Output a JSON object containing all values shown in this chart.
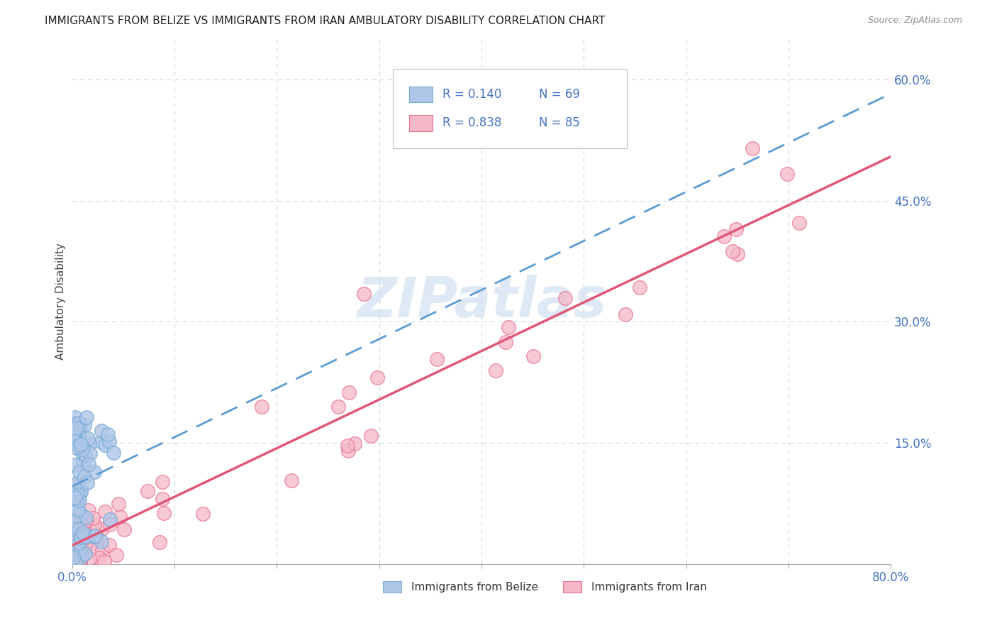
{
  "title": "IMMIGRANTS FROM BELIZE VS IMMIGRANTS FROM IRAN AMBULATORY DISABILITY CORRELATION CHART",
  "source": "Source: ZipAtlas.com",
  "ylabel": "Ambulatory Disability",
  "xlim": [
    0.0,
    0.8
  ],
  "ylim": [
    0.0,
    0.65
  ],
  "xticks": [
    0.0,
    0.1,
    0.2,
    0.3,
    0.4,
    0.5,
    0.6,
    0.7,
    0.8
  ],
  "xticklabels": [
    "0.0%",
    "",
    "",
    "",
    "",
    "",
    "",
    "",
    "80.0%"
  ],
  "ytick_positions": [
    0.15,
    0.3,
    0.45,
    0.6
  ],
  "ytick_labels": [
    "15.0%",
    "30.0%",
    "45.0%",
    "60.0%"
  ],
  "belize_R": 0.14,
  "belize_N": 69,
  "iran_R": 0.838,
  "iran_N": 85,
  "belize_color": "#aec6e8",
  "belize_edge_color": "#7badd4",
  "belize_line_color": "#5b9bd5",
  "iran_color": "#f5b8c8",
  "iran_edge_color": "#e87090",
  "iran_line_color": "#e05878",
  "watermark": "ZIPatlas",
  "background_color": "#ffffff",
  "grid_color": "#c8d4e0",
  "tick_color": "#4472c4",
  "legend_text_color": "#4472c4",
  "legend_N_color": "#4472c4"
}
